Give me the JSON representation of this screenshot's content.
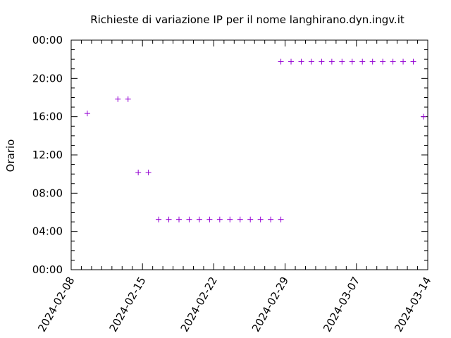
{
  "chart_data": {
    "type": "scatter",
    "title": "Richieste di variazione IP per il nome langhirano.dyn.ingv.it",
    "ylabel": "Orario",
    "xlabel": "",
    "xlim": [
      "2024-02-08",
      "2024-03-14"
    ],
    "ylim": [
      "00:00",
      "24:00"
    ],
    "x_ticks": [
      "2024-02-08",
      "2024-02-15",
      "2024-02-22",
      "2024-02-29",
      "2024-03-07",
      "2024-03-14"
    ],
    "y_ticks": [
      "00:00",
      "04:00",
      "08:00",
      "12:00",
      "16:00",
      "20:00",
      "00:00"
    ],
    "marker": "+",
    "color": "#9400d3",
    "grid": false,
    "points": [
      {
        "x": "2024-02-09",
        "y": "16:20"
      },
      {
        "x": "2024-02-12",
        "y": "17:50"
      },
      {
        "x": "2024-02-13",
        "y": "17:50"
      },
      {
        "x": "2024-02-14",
        "y": "10:10"
      },
      {
        "x": "2024-02-15",
        "y": "10:10"
      },
      {
        "x": "2024-02-16",
        "y": "05:15"
      },
      {
        "x": "2024-02-17",
        "y": "05:15"
      },
      {
        "x": "2024-02-18",
        "y": "05:15"
      },
      {
        "x": "2024-02-19",
        "y": "05:15"
      },
      {
        "x": "2024-02-20",
        "y": "05:15"
      },
      {
        "x": "2024-02-21",
        "y": "05:15"
      },
      {
        "x": "2024-02-22",
        "y": "05:15"
      },
      {
        "x": "2024-02-23",
        "y": "05:15"
      },
      {
        "x": "2024-02-24",
        "y": "05:15"
      },
      {
        "x": "2024-02-25",
        "y": "05:15"
      },
      {
        "x": "2024-02-26",
        "y": "05:15"
      },
      {
        "x": "2024-02-27",
        "y": "05:15"
      },
      {
        "x": "2024-02-28",
        "y": "05:15"
      },
      {
        "x": "2024-02-28",
        "y": "21:45"
      },
      {
        "x": "2024-02-29",
        "y": "21:45"
      },
      {
        "x": "2024-03-01",
        "y": "21:45"
      },
      {
        "x": "2024-03-02",
        "y": "21:45"
      },
      {
        "x": "2024-03-03",
        "y": "21:45"
      },
      {
        "x": "2024-03-04",
        "y": "21:45"
      },
      {
        "x": "2024-03-05",
        "y": "21:45"
      },
      {
        "x": "2024-03-06",
        "y": "21:45"
      },
      {
        "x": "2024-03-07",
        "y": "21:45"
      },
      {
        "x": "2024-03-08",
        "y": "21:45"
      },
      {
        "x": "2024-03-09",
        "y": "21:45"
      },
      {
        "x": "2024-03-10",
        "y": "21:45"
      },
      {
        "x": "2024-03-11",
        "y": "21:45"
      },
      {
        "x": "2024-03-12",
        "y": "21:45"
      },
      {
        "x": "2024-03-13",
        "y": "16:00"
      }
    ]
  }
}
